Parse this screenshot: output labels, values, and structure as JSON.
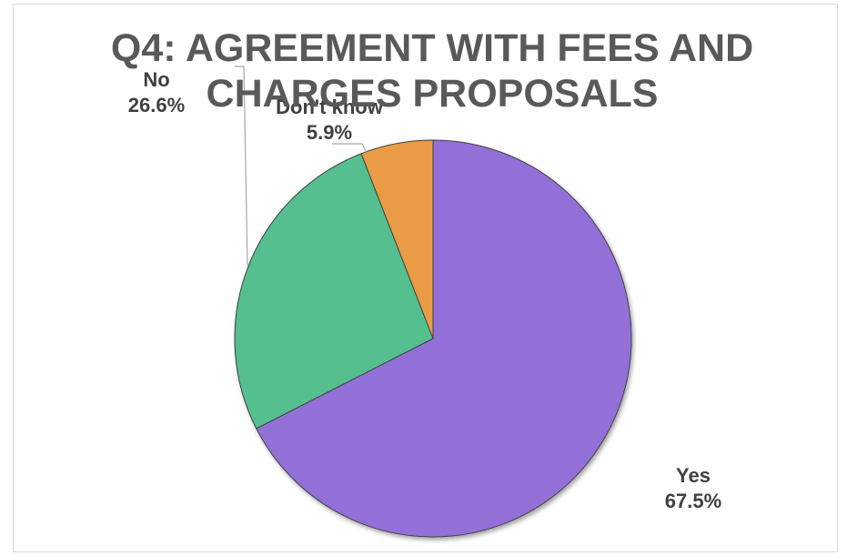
{
  "chart_data": {
    "type": "pie",
    "title": "Q4: AGREEMENT WITH FEES AND CHARGES PROPOSALS",
    "slices": [
      {
        "label": "Yes",
        "value": 67.5,
        "display": "67.5%",
        "color": "#9370d8"
      },
      {
        "label": "No",
        "value": 26.6,
        "display": "26.6%",
        "color": "#55bf8f"
      },
      {
        "label": "Don't know",
        "value": 5.9,
        "display": "5.9%",
        "color": "#e99c45"
      }
    ],
    "legend": "none",
    "units": "%"
  }
}
